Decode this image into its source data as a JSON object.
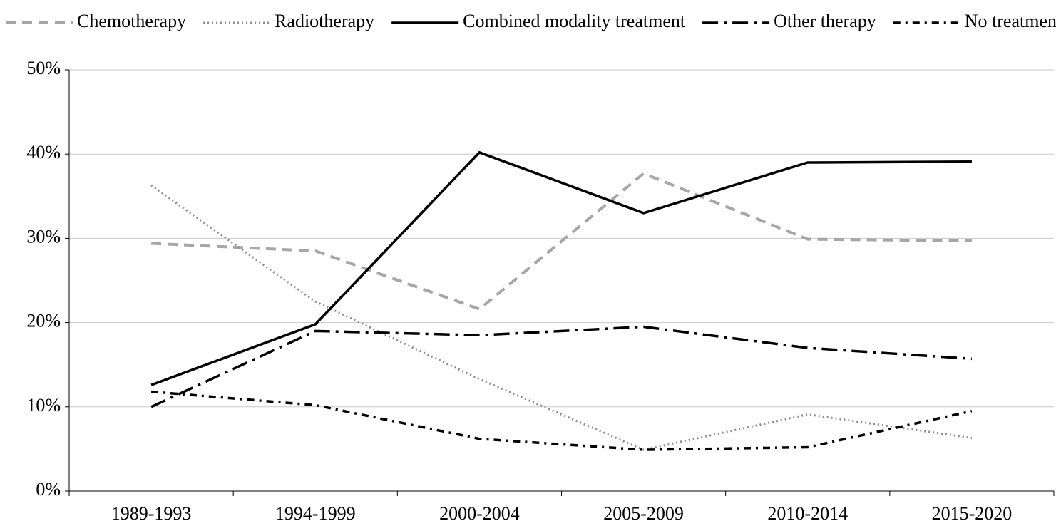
{
  "chart_data": {
    "type": "line",
    "categories": [
      "1989-1993",
      "1994-1999",
      "2000-2004",
      "2005-2009",
      "2010-2014",
      "2015-2020"
    ],
    "series": [
      {
        "name": "Chemotherapy",
        "color": "#a6a6a6",
        "dash": "dashed",
        "values": [
          29.4,
          28.5,
          21.6,
          37.7,
          29.9,
          29.7
        ]
      },
      {
        "name": "Radiotherapy",
        "color": "#8c8c8c",
        "dash": "dotted",
        "values": [
          36.3,
          22.5,
          13.3,
          4.9,
          9.1,
          6.3
        ]
      },
      {
        "name": "Combined modality treatment",
        "color": "#000000",
        "dash": "solid",
        "values": [
          12.6,
          19.8,
          40.2,
          33.0,
          39.0,
          39.1
        ]
      },
      {
        "name": "Other therapy",
        "color": "#000000",
        "dash": "long-dash-dot",
        "values": [
          10.0,
          19.0,
          18.5,
          19.5,
          17.0,
          15.7
        ]
      },
      {
        "name": "No treatment",
        "color": "#000000",
        "dash": "dash-dot",
        "values": [
          11.8,
          10.2,
          6.2,
          4.9,
          5.2,
          9.5
        ]
      }
    ],
    "ylim": [
      0,
      50
    ],
    "yticks": [
      {
        "value": 0,
        "label": "0%"
      },
      {
        "value": 10,
        "label": "10%"
      },
      {
        "value": 20,
        "label": "20%"
      },
      {
        "value": 30,
        "label": "30%"
      },
      {
        "value": 40,
        "label": "40%"
      },
      {
        "value": 50,
        "label": "50%"
      }
    ],
    "grid": true,
    "legend": "top"
  }
}
